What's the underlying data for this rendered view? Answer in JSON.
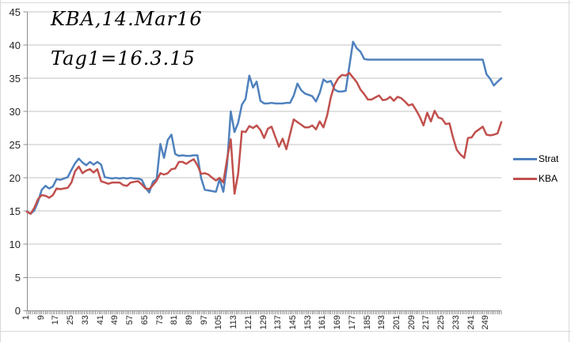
{
  "annotations": {
    "line1": "KBA,14.Mar16",
    "line2": "Tag1=16.3.15"
  },
  "colors": {
    "strat_blue": "#4F81BD",
    "kba_red": "#C0504D",
    "gridline": "#C3C3C3",
    "axis": "#8C8C8C",
    "tick_text": "#262626",
    "sheet_line": "#D8D8D8",
    "background": "#FFFFFF"
  },
  "legend": {
    "position": "right",
    "items": [
      {
        "label": "Strat",
        "color": "#4F81BD"
      },
      {
        "label": "KBA",
        "color": "#C0504D"
      }
    ]
  },
  "chart_data": {
    "type": "line",
    "title": "",
    "annotations": [
      "KBA,14.Mar16",
      "Tag1=16.3.15"
    ],
    "grid": true,
    "legend_position": "right",
    "xlabel": "",
    "ylabel": "",
    "y_axis": {
      "min": 0,
      "max": 45,
      "tick_labels": [
        "0",
        "5",
        "10",
        "15",
        "20",
        "25",
        "30",
        "35",
        "40",
        "45"
      ]
    },
    "x_axis": {
      "category_start": 1,
      "category_end": 257,
      "series_step": 2,
      "tick_labels": [
        "1",
        "9",
        "17",
        "25",
        "33",
        "41",
        "49",
        "57",
        "65",
        "73",
        "81",
        "89",
        "97",
        "105",
        "113",
        "121",
        "129",
        "137",
        "145",
        "153",
        "161",
        "169",
        "177",
        "185",
        "193",
        "201",
        "209",
        "217",
        "225",
        "233",
        "241",
        "249"
      ]
    },
    "series": [
      {
        "name": "Strat",
        "color": "#4F81BD",
        "values": [
          14.9,
          14.6,
          15.1,
          16.4,
          18.2,
          18.8,
          18.4,
          18.7,
          19.8,
          19.7,
          19.9,
          20.1,
          21.2,
          22.2,
          22.9,
          22.3,
          21.9,
          22.4,
          22.0,
          22.4,
          22.0,
          20.1,
          20.0,
          19.9,
          20.0,
          19.9,
          20.0,
          19.9,
          20.0,
          19.9,
          19.9,
          19.7,
          18.5,
          17.8,
          19.4,
          19.8,
          25.1,
          23.0,
          25.7,
          26.5,
          23.6,
          23.3,
          23.4,
          23.3,
          23.3,
          23.4,
          23.4,
          20.0,
          18.2,
          18.1,
          18.0,
          17.9,
          19.8,
          17.9,
          21.9,
          30.0,
          26.9,
          28.3,
          31.0,
          31.9,
          35.4,
          33.6,
          34.5,
          31.6,
          31.2,
          31.2,
          31.3,
          31.2,
          31.2,
          31.2,
          31.3,
          31.3,
          32.4,
          34.2,
          33.2,
          32.7,
          32.5,
          32.3,
          31.5,
          32.8,
          34.8,
          34.4,
          34.6,
          33.3,
          33.0,
          33.0,
          33.1,
          36.8,
          40.5,
          39.5,
          39.0,
          37.9,
          37.8,
          37.8,
          37.8,
          37.8,
          37.8,
          37.8,
          37.8,
          37.8,
          37.8,
          37.8,
          37.8,
          37.8,
          37.8,
          37.8,
          37.8,
          37.8,
          37.8,
          37.8,
          37.8,
          37.8,
          37.8,
          37.8,
          37.8,
          37.8,
          37.8,
          37.8,
          37.8,
          37.8,
          37.8,
          37.8,
          37.8,
          37.8,
          35.6,
          34.9,
          33.9,
          34.5,
          35.0
        ]
      },
      {
        "name": "KBA",
        "color": "#C0504D",
        "values": [
          14.9,
          14.6,
          15.5,
          16.8,
          17.4,
          17.3,
          17.0,
          17.4,
          18.4,
          18.3,
          18.4,
          18.5,
          19.3,
          21.0,
          21.7,
          20.7,
          21.1,
          21.3,
          20.8,
          21.3,
          19.5,
          19.3,
          19.1,
          19.3,
          19.3,
          19.3,
          18.9,
          18.8,
          19.3,
          19.4,
          19.5,
          19.0,
          18.4,
          18.3,
          18.9,
          19.6,
          20.7,
          20.5,
          20.7,
          21.3,
          21.4,
          22.4,
          22.4,
          22.1,
          22.5,
          22.8,
          21.9,
          20.6,
          20.7,
          20.5,
          20.0,
          19.6,
          20.0,
          19.3,
          22.8,
          25.8,
          17.6,
          20.6,
          27.0,
          26.9,
          27.8,
          27.5,
          27.9,
          27.2,
          26.0,
          27.4,
          27.7,
          26.2,
          24.7,
          25.9,
          24.3,
          26.6,
          28.8,
          28.4,
          28.0,
          27.6,
          27.6,
          27.9,
          27.3,
          28.5,
          27.6,
          29.4,
          32.1,
          34.0,
          35.0,
          35.5,
          35.4,
          35.8,
          35.1,
          34.4,
          33.3,
          32.6,
          31.8,
          31.8,
          32.1,
          32.4,
          31.7,
          31.8,
          32.2,
          31.6,
          32.2,
          32.0,
          31.5,
          30.9,
          31.1,
          30.2,
          29.2,
          27.9,
          29.8,
          28.5,
          30.1,
          29.1,
          28.9,
          28.1,
          28.2,
          26.0,
          24.2,
          23.5,
          23.0,
          26.0,
          26.1,
          26.9,
          27.3,
          27.7,
          26.5,
          26.4,
          26.5,
          26.7,
          28.4
        ]
      }
    ]
  }
}
